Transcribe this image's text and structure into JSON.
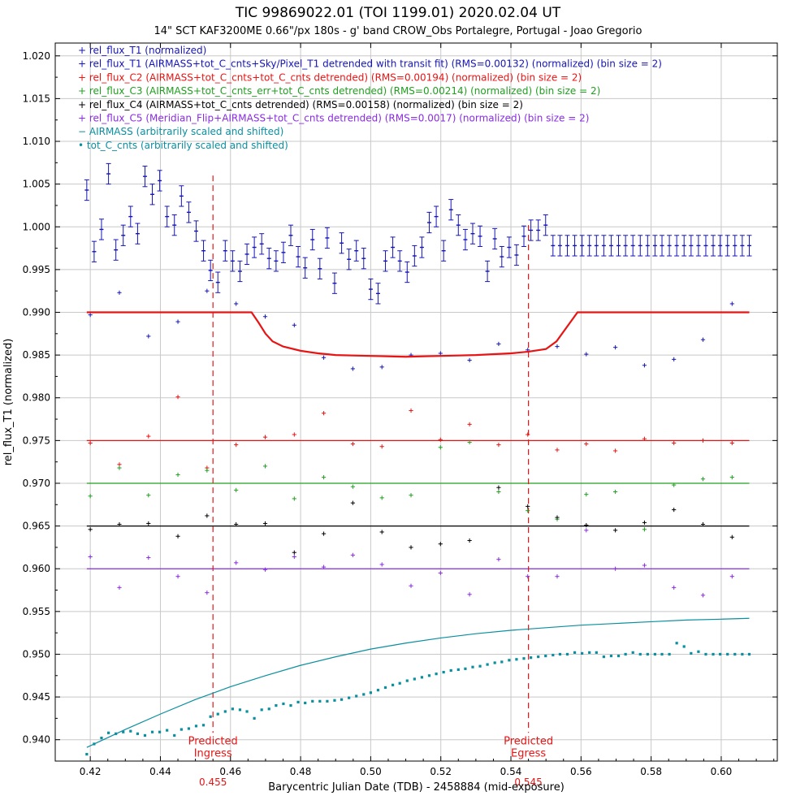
{
  "chart_data": {
    "type": "scatter",
    "title": "TIC 99869022.01 (TOI 1199.01)  2020.02.04 UT",
    "subtitle": "14\" SCT KAF3200ME 0.66\"/px 180s - g' band CROW_Obs Portalegre, Portugal - Joao Gregorio",
    "xlabel": "Barycentric Julian Date (TDB) - 2458884 (mid-exposure)",
    "ylabel": "rel_flux_T1 (normalized)",
    "xlim": [
      0.41,
      0.616
    ],
    "ylim": [
      0.9375,
      1.0215
    ],
    "grid": true,
    "legend_position": "top-left",
    "xticks": [
      0.42,
      0.44,
      0.46,
      0.48,
      0.5,
      0.52,
      0.54,
      0.56,
      0.58,
      0.6
    ],
    "xtick_labels": [
      "0.42",
      "0.44",
      "0.46",
      "0.48",
      "0.50",
      "0.52",
      "0.54",
      "0.56",
      "0.58",
      "0.60"
    ],
    "yticks": [
      0.94,
      0.945,
      0.95,
      0.955,
      0.96,
      0.965,
      0.97,
      0.975,
      0.98,
      0.985,
      0.99,
      0.995,
      1.0,
      1.005,
      1.01,
      1.015,
      1.02
    ],
    "ytick_labels": [
      "0.940",
      "0.945",
      "0.950",
      "0.955",
      "0.960",
      "0.965",
      "0.970",
      "0.975",
      "0.980",
      "0.985",
      "0.990",
      "0.995",
      "1.000",
      "1.005",
      "1.010",
      "1.015",
      "1.020"
    ],
    "x": [
      0.419,
      0.4211,
      0.4232,
      0.4252,
      0.4273,
      0.4294,
      0.4315,
      0.4335,
      0.4356,
      0.4377,
      0.4398,
      0.4419,
      0.444,
      0.446,
      0.4481,
      0.4502,
      0.4523,
      0.4543,
      0.4564,
      0.4585,
      0.4606,
      0.4627,
      0.4647,
      0.4668,
      0.4689,
      0.471,
      0.473,
      0.4751,
      0.4772,
      0.4793,
      0.4813,
      0.4834,
      0.4855,
      0.4876,
      0.4897,
      0.4917,
      0.4938,
      0.4959,
      0.498,
      0.5,
      0.5021,
      0.5042,
      0.5063,
      0.5083,
      0.5104,
      0.5125,
      0.5146,
      0.5167,
      0.5187,
      0.5208,
      0.5229,
      0.525,
      0.527,
      0.5291,
      0.5312,
      0.5333,
      0.5354,
      0.5374,
      0.5395,
      0.5416,
      0.5437,
      0.5457,
      0.5478,
      0.5499,
      0.552,
      0.554,
      0.5561,
      0.5582,
      0.5603,
      0.5624,
      0.5644,
      0.5665,
      0.5686,
      0.5707,
      0.5727,
      0.5748,
      0.5769,
      0.579,
      0.5811,
      0.5831,
      0.5852,
      0.5873,
      0.5894,
      0.5914,
      0.5935,
      0.5956,
      0.5977,
      0.5997,
      0.6018,
      0.6039,
      0.606,
      0.608
    ],
    "T1_unbinned": [
      1.0044,
      1.0052,
      1.0042,
      0.999,
      0.997,
      0.9982,
      0.9998,
      1.003,
      0.9984,
      0.9975,
      0.9987,
      0.9979,
      1.001,
      1.0012,
      0.9998,
      0.9996,
      1.0011,
      1.0036,
      1.005,
      1.0049,
      1.0045,
      1.0031,
      1.0021,
      1.0005,
      1.0008,
      1.0013,
      1.0001,
      1.0004,
      1.0005,
      1.0013,
      0.9983,
      0.9996,
      0.9977,
      0.9966,
      0.9944,
      0.9941,
      0.9939,
      0.9927,
      0.9966,
      0.9972,
      0.9954,
      0.9944,
      0.9964,
      0.9958,
      0.9975,
      0.9963,
      0.9962,
      0.9979,
      0.997,
      0.9964,
      0.9975,
      0.9968,
      0.9958,
      0.996,
      0.9987,
      0.9984,
      0.9965,
      0.9972,
      0.9956,
      0.9955,
      0.9985,
      0.9991,
      0.9945,
      0.9985,
      0.9964,
      0.9982,
      0.9984,
      0.995,
      0.9994,
      0.9983,
      0.997,
      0.9976,
      0.9962,
      0.9959,
      0.9975,
      0.9969,
      0.9959,
      0.9963,
      0.9959,
      0.9981,
      0.9984,
      0.997,
      0.9952,
      0.9958,
      0.9952,
      0.9981,
      0.9949,
      0.9958,
      0.996,
      0.9966,
      0.9976,
      0.9973
    ],
    "series": [
      {
        "name": "rel_flux_T1 (normalized)",
        "color": "#1515b8",
        "marker": "errorbar",
        "error": 0.0012,
        "x": [
          0.419,
          0.4211,
          0.4232,
          0.4252,
          0.4273,
          0.4294,
          0.4315,
          0.4335,
          0.4356,
          0.4377,
          0.4398,
          0.4419,
          0.444,
          0.446,
          0.4481,
          0.4502,
          0.4523,
          0.4543,
          0.4564,
          0.4585,
          0.4606,
          0.4627,
          0.4647,
          0.4668,
          0.4689,
          0.471,
          0.473,
          0.4751,
          0.4772,
          0.4793,
          0.4813,
          0.4834,
          0.4855,
          0.4876,
          0.4897,
          0.4917,
          0.4938,
          0.4959,
          0.498,
          0.5,
          0.5021,
          0.5042,
          0.5063,
          0.5083,
          0.5104,
          0.5125,
          0.5146,
          0.5167,
          0.5187,
          0.5208,
          0.5229,
          0.525,
          0.527,
          0.5291,
          0.5312,
          0.5333,
          0.5354,
          0.5374,
          0.5395,
          0.5416,
          0.5437,
          0.5457,
          0.5478,
          0.5499,
          0.552,
          0.554,
          0.5561,
          0.5582,
          0.5603,
          0.5624,
          0.5644,
          0.5665,
          0.5686,
          0.5707,
          0.5727,
          0.5748,
          0.5769,
          0.579,
          0.5811,
          0.5831,
          0.5852,
          0.5873,
          0.5894,
          0.5914,
          0.5935,
          0.5956,
          0.5977,
          0.5997,
          0.6018,
          0.6039,
          0.606,
          0.608
        ],
        "y": [
          1.0043,
          0.9971,
          0.9997,
          1.0062,
          0.9973,
          0.999,
          1.0012,
          0.9992,
          1.0059,
          1.0038,
          1.0054,
          1.0012,
          1.0002,
          1.0036,
          1.0017,
          0.9995,
          0.9972,
          0.9949,
          0.9935,
          0.9972,
          0.996,
          0.9948,
          0.9968,
          0.9976,
          0.998,
          0.9963,
          0.996,
          0.997,
          0.999,
          0.9965,
          0.9952,
          0.9985,
          0.9951,
          0.9987,
          0.9934,
          0.9981,
          0.9962,
          0.9972,
          0.9963,
          0.9927,
          0.9922,
          0.996,
          0.9976,
          0.996,
          0.9947,
          0.9966,
          0.9976,
          1.0005,
          1.0012,
          0.9972,
          1.002,
          1.0002,
          0.9985,
          0.9992,
          0.9989,
          0.9948,
          0.9986,
          0.9965,
          0.9976,
          0.9967,
          0.9989,
          0.9996,
          0.9996,
          1.0002,
          0.9978,
          0.9978,
          0.9978,
          0.9978,
          0.9978,
          0.9978,
          0.9978,
          0.9978,
          0.9978,
          0.9978,
          0.9978,
          0.9978,
          0.9978,
          0.9978,
          0.9978,
          0.9978,
          0.9978,
          0.9978,
          0.9978,
          0.9978,
          0.9978,
          0.9978,
          0.9978,
          0.9978,
          0.9978,
          0.9978,
          0.9978,
          0.9978
        ]
      },
      {
        "name": "rel_flux_T1 (AIRMASS+tot_C_cnts+Sky/Pixel_T1 detrended with transit fit) (RMS=0.00132) (normalized) (bin size = 2)",
        "color": "#1515b8",
        "marker": "plus",
        "x": [
          0.42,
          0.4283,
          0.4366,
          0.445,
          0.4533,
          0.4616,
          0.4699,
          0.4782,
          0.4866,
          0.4949,
          0.5032,
          0.5115,
          0.5199,
          0.5282,
          0.5365,
          0.5448,
          0.5532,
          0.5615,
          0.5698,
          0.5781,
          0.5865,
          0.5948,
          0.6031
        ],
        "y": [
          0.9897,
          0.9923,
          0.9872,
          0.9889,
          0.9925,
          0.991,
          0.9895,
          0.9885,
          0.9847,
          0.9834,
          0.9836,
          0.985,
          0.9852,
          0.9844,
          0.9863,
          0.9856,
          0.986,
          0.9851,
          0.9859,
          0.9838,
          0.9845,
          0.9868,
          0.991
        ]
      },
      {
        "name": "rel_flux_C2 (AIRMASS+tot_C_cnts+tot_C_cnts detrended) (RMS=0.00194) (normalized) (bin size = 2)",
        "color": "#e81414",
        "marker": "plus",
        "offset": 0.975,
        "x": [
          0.42,
          0.4283,
          0.4366,
          0.445,
          0.4533,
          0.4616,
          0.4699,
          0.4782,
          0.4866,
          0.4949,
          0.5032,
          0.5115,
          0.5199,
          0.5282,
          0.5365,
          0.5448,
          0.5532,
          0.5615,
          0.5698,
          0.5781,
          0.5865,
          0.5948,
          0.6031
        ],
        "y": [
          0.9747,
          0.9722,
          0.9755,
          0.9801,
          0.9718,
          0.9745,
          0.9754,
          0.9757,
          0.9782,
          0.9746,
          0.9743,
          0.9785,
          0.9751,
          0.9769,
          0.9745,
          0.9757,
          0.9739,
          0.9746,
          0.9738,
          0.9752,
          0.9747,
          0.975,
          0.9747
        ]
      },
      {
        "name": "rel_flux_C3 (AIRMASS+tot_C_cnts_err+tot_C_cnts detrended) (RMS=0.00214) (normalized) (bin size = 2)",
        "color": "#20a020",
        "marker": "plus",
        "offset": 0.97,
        "x": [
          0.42,
          0.4283,
          0.4366,
          0.445,
          0.4533,
          0.4616,
          0.4699,
          0.4782,
          0.4866,
          0.4949,
          0.5032,
          0.5115,
          0.5199,
          0.5282,
          0.5365,
          0.5448,
          0.5532,
          0.5615,
          0.5698,
          0.5781,
          0.5865,
          0.5948,
          0.6031
        ],
        "y": [
          0.9685,
          0.9718,
          0.9686,
          0.971,
          0.9715,
          0.9692,
          0.972,
          0.9682,
          0.9707,
          0.9696,
          0.9683,
          0.9686,
          0.9742,
          0.9748,
          0.969,
          0.9668,
          0.9658,
          0.9687,
          0.969,
          0.9646,
          0.9698,
          0.9705,
          0.9707
        ]
      },
      {
        "name": "rel_flux_C4 (AIRMASS+tot_C_cnts detrended) (RMS=0.00158) (normalized) (bin size = 2)",
        "color": "#000000",
        "marker": "plus",
        "offset": 0.965,
        "x": [
          0.42,
          0.4283,
          0.4366,
          0.445,
          0.4533,
          0.4616,
          0.4699,
          0.4782,
          0.4866,
          0.4949,
          0.5032,
          0.5115,
          0.5199,
          0.5282,
          0.5365,
          0.5448,
          0.5532,
          0.5615,
          0.5698,
          0.5781,
          0.5865,
          0.5948,
          0.6031
        ],
        "y": [
          0.9646,
          0.9652,
          0.9653,
          0.9638,
          0.9662,
          0.9652,
          0.9653,
          0.9619,
          0.9641,
          0.9677,
          0.9643,
          0.9625,
          0.9629,
          0.9633,
          0.9695,
          0.9673,
          0.966,
          0.9651,
          0.9645,
          0.9654,
          0.9669,
          0.9652,
          0.9637
        ]
      },
      {
        "name": "rel_flux_C5 (Meridian_Flip+AIRMASS+tot_C_cnts detrended) (RMS=0.0017) (normalized) (bin size = 2)",
        "color": "#8a2be2",
        "marker": "plus",
        "offset": 0.96,
        "x": [
          0.42,
          0.4283,
          0.4366,
          0.445,
          0.4533,
          0.4616,
          0.4699,
          0.4782,
          0.4866,
          0.4949,
          0.5032,
          0.5115,
          0.5199,
          0.5282,
          0.5365,
          0.5448,
          0.5532,
          0.5615,
          0.5698,
          0.5781,
          0.5865,
          0.5948,
          0.6031
        ],
        "y": [
          0.9614,
          0.9578,
          0.9613,
          0.9591,
          0.9572,
          0.9607,
          0.9599,
          0.9614,
          0.9602,
          0.9616,
          0.9605,
          0.958,
          0.9595,
          0.957,
          0.9611,
          0.9591,
          0.9591,
          0.9645,
          0.96,
          0.9604,
          0.9578,
          0.9569,
          0.9591
        ]
      },
      {
        "name": "AIRMASS (arbitrarily scaled and shifted)",
        "color": "#0a8fa0",
        "marker": "line",
        "x": [
          0.419,
          0.43,
          0.44,
          0.45,
          0.46,
          0.47,
          0.48,
          0.49,
          0.5,
          0.51,
          0.52,
          0.53,
          0.54,
          0.55,
          0.56,
          0.57,
          0.58,
          0.59,
          0.6,
          0.608
        ],
        "y": [
          0.9391,
          0.9412,
          0.943,
          0.9447,
          0.9462,
          0.9475,
          0.9487,
          0.9497,
          0.9506,
          0.9513,
          0.9519,
          0.9524,
          0.9528,
          0.9531,
          0.9534,
          0.9536,
          0.9538,
          0.954,
          0.9541,
          0.9542
        ]
      },
      {
        "name": "tot_C_cnts (arbitrarily scaled and shifted)",
        "color": "#0a8fa0",
        "marker": "dot",
        "x": [
          0.419,
          0.4211,
          0.4232,
          0.4252,
          0.4273,
          0.4294,
          0.4315,
          0.4335,
          0.4356,
          0.4377,
          0.4398,
          0.4419,
          0.444,
          0.446,
          0.4481,
          0.4502,
          0.4523,
          0.4543,
          0.4564,
          0.4585,
          0.4606,
          0.4627,
          0.4647,
          0.4668,
          0.4689,
          0.471,
          0.473,
          0.4751,
          0.4772,
          0.4793,
          0.4813,
          0.4834,
          0.4855,
          0.4876,
          0.4897,
          0.4917,
          0.4938,
          0.4959,
          0.498,
          0.5,
          0.5021,
          0.5042,
          0.5063,
          0.5083,
          0.5104,
          0.5125,
          0.5146,
          0.5167,
          0.5187,
          0.5208,
          0.5229,
          0.525,
          0.527,
          0.5291,
          0.5312,
          0.5333,
          0.5354,
          0.5374,
          0.5395,
          0.5416,
          0.5437,
          0.5457,
          0.5478,
          0.5499,
          0.552,
          0.554,
          0.5561,
          0.5582,
          0.5603,
          0.5624,
          0.5644,
          0.5665,
          0.5686,
          0.5707,
          0.5727,
          0.5748,
          0.5769,
          0.579,
          0.5811,
          0.5831,
          0.5852,
          0.5873,
          0.5894,
          0.5914,
          0.5935,
          0.5956,
          0.5977,
          0.5997,
          0.6018,
          0.6039,
          0.606,
          0.608
        ],
        "y": [
          0.9383,
          0.9395,
          0.9402,
          0.9408,
          0.9407,
          0.9409,
          0.941,
          0.9407,
          0.9405,
          0.9409,
          0.9409,
          0.9411,
          0.9405,
          0.9412,
          0.9413,
          0.9416,
          0.9417,
          0.9427,
          0.943,
          0.9433,
          0.9436,
          0.9435,
          0.9433,
          0.9425,
          0.9435,
          0.9436,
          0.944,
          0.9442,
          0.944,
          0.9444,
          0.9443,
          0.9445,
          0.9445,
          0.9445,
          0.9446,
          0.9447,
          0.9449,
          0.9451,
          0.9453,
          0.9455,
          0.9458,
          0.9461,
          0.9464,
          0.9466,
          0.9469,
          0.9471,
          0.9473,
          0.9475,
          0.9477,
          0.9479,
          0.9481,
          0.9482,
          0.9483,
          0.9485,
          0.9486,
          0.9488,
          0.949,
          0.9491,
          0.9493,
          0.9494,
          0.9495,
          0.9496,
          0.9497,
          0.9498,
          0.9499,
          0.95,
          0.95,
          0.9502,
          0.9501,
          0.9502,
          0.9502,
          0.9497,
          0.9498,
          0.9498,
          0.95,
          0.9502,
          0.95,
          0.95,
          0.95,
          0.95,
          0.95,
          0.9513,
          0.9509,
          0.9501,
          0.9503,
          0.95,
          0.95,
          0.95,
          0.95,
          0.95,
          0.95,
          0.95
        ]
      }
    ],
    "transit_model": {
      "color": "#e81414",
      "x": [
        0.419,
        0.466,
        0.468,
        0.47,
        0.472,
        0.475,
        0.48,
        0.485,
        0.49,
        0.5,
        0.51,
        0.52,
        0.53,
        0.54,
        0.545,
        0.55,
        0.553,
        0.556,
        0.559,
        0.608
      ],
      "y": [
        0.99,
        0.99,
        0.9888,
        0.9875,
        0.9866,
        0.986,
        0.9855,
        0.9852,
        0.985,
        0.9849,
        0.9848,
        0.9849,
        0.985,
        0.9852,
        0.9854,
        0.9857,
        0.9866,
        0.9883,
        0.99,
        0.99
      ]
    },
    "baselines": [
      {
        "value": 0.975,
        "color": "#e81414"
      },
      {
        "value": 0.97,
        "color": "#20a020"
      },
      {
        "value": 0.965,
        "color": "#000000"
      },
      {
        "value": 0.96,
        "color": "#8a2be2"
      }
    ],
    "markers": [
      {
        "x": 0.455,
        "label": "Predicted\nIngress",
        "value_label": "0.455",
        "color": "#e81414"
      },
      {
        "x": 0.545,
        "label": "Predicted\nEgress",
        "value_label": "0.545",
        "color": "#e81414"
      }
    ],
    "legend": [
      {
        "label": "+ rel_flux_T1 (normalized)",
        "color": "#1515b8"
      },
      {
        "label": "+ rel_flux_T1 (AIRMASS+tot_C_cnts+Sky/Pixel_T1 detrended with transit fit) (RMS=0.00132) (normalized) (bin size = 2)",
        "color": "#1515b8"
      },
      {
        "label": "+ rel_flux_C2 (AIRMASS+tot_C_cnts+tot_C_cnts detrended) (RMS=0.00194) (normalized) (bin size = 2)",
        "color": "#e81414"
      },
      {
        "label": "+ rel_flux_C3 (AIRMASS+tot_C_cnts_err+tot_C_cnts detrended) (RMS=0.00214) (normalized) (bin size = 2)",
        "color": "#20a020"
      },
      {
        "label": "+ rel_flux_C4 (AIRMASS+tot_C_cnts detrended) (RMS=0.00158) (normalized) (bin size = 2)",
        "color": "#000000"
      },
      {
        "label": "+ rel_flux_C5 (Meridian_Flip+AIRMASS+tot_C_cnts detrended) (RMS=0.0017) (normalized) (bin size = 2)",
        "color": "#8a2be2"
      },
      {
        "label": "− AIRMASS (arbitrarily scaled and shifted)",
        "color": "#0a8fa0"
      },
      {
        "label": "• tot_C_cnts (arbitrarily scaled and shifted)",
        "color": "#0a8fa0"
      }
    ]
  }
}
